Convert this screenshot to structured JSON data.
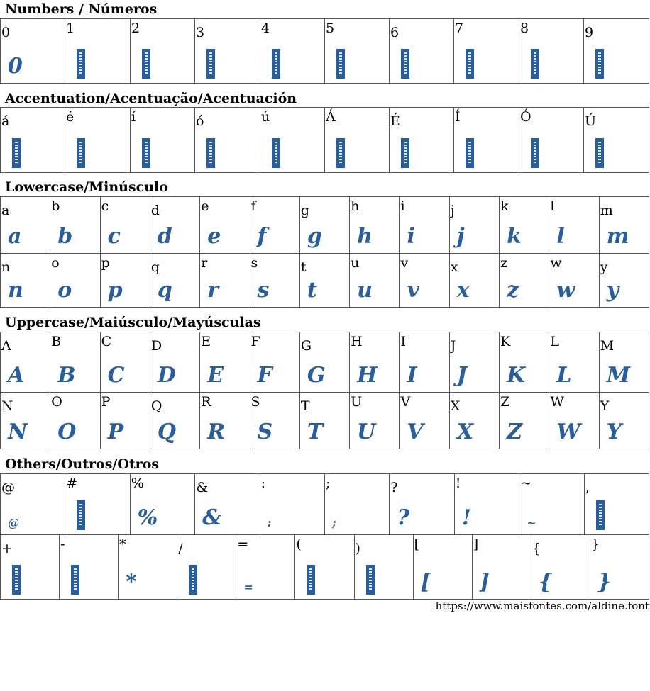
{
  "sections": {
    "numbers": {
      "title": "Numbers / Números",
      "chars": [
        "0",
        "1",
        "2",
        "3",
        "4",
        "5",
        "6",
        "7",
        "8",
        "9"
      ]
    },
    "accents": {
      "title": "Accentuation/Acentuação/Acentuación",
      "chars": [
        "á",
        "é",
        "í",
        "ó",
        "ú",
        "Á",
        "É",
        "Í",
        "Ó",
        "Ú"
      ]
    },
    "lowercase": {
      "title": "Lowercase/Minúsculo",
      "row1": [
        "a",
        "b",
        "c",
        "d",
        "e",
        "f",
        "g",
        "h",
        "i",
        "j",
        "k",
        "l",
        "m"
      ],
      "row2": [
        "n",
        "o",
        "p",
        "q",
        "r",
        "s",
        "t",
        "u",
        "v",
        "x",
        "z",
        "w",
        "y"
      ]
    },
    "uppercase": {
      "title": "Uppercase/Maiúsculo/Mayúsculas",
      "row1": [
        "A",
        "B",
        "C",
        "D",
        "E",
        "F",
        "G",
        "H",
        "I",
        "J",
        "K",
        "L",
        "M"
      ],
      "row2": [
        "N",
        "O",
        "P",
        "Q",
        "R",
        "S",
        "T",
        "U",
        "V",
        "X",
        "Z",
        "W",
        "Y"
      ]
    },
    "others": {
      "title": "Others/Outros/Otros",
      "row1": [
        "@",
        "#",
        "%",
        "&",
        ":",
        ";",
        "?",
        "!",
        "~",
        "‚"
      ],
      "row1_glyphs": [
        "@",
        "",
        "%",
        "&",
        ":",
        ";",
        "?",
        "!",
        "~",
        ""
      ],
      "row2": [
        "+",
        "-",
        "*",
        "/",
        "=",
        "(",
        ")",
        "[",
        "]",
        "{",
        "}"
      ],
      "row2_glyphs": [
        "",
        "",
        "*",
        "",
        "=",
        "",
        "",
        "[",
        "]",
        "{",
        "}"
      ]
    }
  },
  "numbers_glyphs": [
    "0",
    "",
    "",
    "",
    "",
    "",
    "",
    "",
    "",
    ""
  ],
  "accent_glyphs": [
    "",
    "",
    "",
    "",
    "",
    "",
    "",
    "",
    "",
    ""
  ],
  "footer": {
    "url": "https://www.maisfontes.com/aldine.font"
  },
  "colors": {
    "glyph": "#2a5d9c",
    "border": "#555555"
  }
}
